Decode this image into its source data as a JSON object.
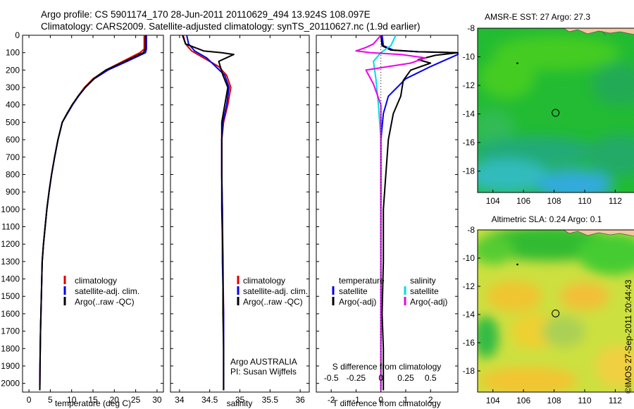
{
  "header": {
    "line1": "Argo profile: CS 5901174_170 28-Jun-2011 20110629_494 13.924S 108.097E",
    "line2": "Climatology: CARS2009. Satellite-adjusted climatology: synTS_20110627.nc (1.9d earlier)"
  },
  "side_label": "©IMOS 27-Sep-2011 20:44:43",
  "colors": {
    "red": "#dd0000",
    "blue": "#0000ee",
    "black": "#000000",
    "cyan": "#00dddd",
    "magenta": "#ee00ee",
    "land": "#f2c8a0"
  },
  "chart_data": [
    {
      "id": "temperature",
      "type": "line",
      "xlabel": "temperature (deg C)",
      "xlim": [
        -1.5,
        31.5
      ],
      "xticks": [
        0,
        5,
        10,
        15,
        20,
        25,
        30
      ],
      "ylim": [
        0,
        2050
      ],
      "yticks": [
        0,
        100,
        200,
        300,
        400,
        500,
        600,
        700,
        800,
        900,
        1000,
        1100,
        1200,
        1300,
        1400,
        1500,
        1600,
        1700,
        1800,
        1900,
        2000
      ],
      "legend": [
        "climatology",
        "satellite-adj. clim.",
        "Argo(..raw -QC)"
      ],
      "series": [
        {
          "name": "climatology",
          "color": "red",
          "x": [
            27,
            27,
            26,
            22,
            18,
            15,
            13,
            11.5,
            10.2,
            9,
            7.8,
            6.8,
            6,
            5.3,
            4.7,
            4.2,
            3.8,
            3.4,
            3.1,
            2.9,
            2.7,
            2.6,
            2.55
          ],
          "y": [
            0,
            80,
            100,
            150,
            200,
            250,
            300,
            350,
            400,
            450,
            500,
            600,
            700,
            800,
            900,
            1000,
            1100,
            1200,
            1300,
            1500,
            1700,
            1900,
            2040
          ]
        },
        {
          "name": "satellite-adj. clim.",
          "color": "blue",
          "x": [
            27.5,
            27.5,
            27.3,
            23,
            18.5,
            15.3,
            13.2,
            11.6,
            10.2,
            9,
            7.8,
            6.8,
            6,
            5.3,
            4.7,
            4.2,
            3.8,
            3.4,
            3.1,
            2.9,
            2.7,
            2.6,
            2.55
          ],
          "y": [
            0,
            80,
            100,
            150,
            200,
            250,
            300,
            350,
            400,
            450,
            500,
            600,
            700,
            800,
            900,
            1000,
            1100,
            1200,
            1300,
            1500,
            1700,
            1900,
            2040
          ]
        },
        {
          "name": "Argo(..raw -QC)",
          "color": "black",
          "x": [
            27.3,
            27.3,
            26.8,
            22.5,
            18,
            15.2,
            13.2,
            11.5,
            10.1,
            8.9,
            7.8,
            6.8,
            6,
            5.3,
            4.7,
            4.2,
            3.8,
            3.4,
            3.1,
            2.9,
            2.7,
            2.6,
            2.55
          ],
          "y": [
            0,
            80,
            100,
            150,
            200,
            250,
            300,
            350,
            400,
            450,
            500,
            600,
            700,
            800,
            900,
            1000,
            1100,
            1200,
            1300,
            1500,
            1700,
            1900,
            2040
          ]
        }
      ]
    },
    {
      "id": "salinity",
      "type": "line",
      "xlabel": "salinity",
      "xlim": [
        33.85,
        36.15
      ],
      "xticks": [
        34,
        34.5,
        35,
        35.5,
        36
      ],
      "xticklabels": [
        "34",
        "34.5",
        "35",
        "35.5",
        "36"
      ],
      "ylim": [
        0,
        2050
      ],
      "legend": [
        "climatology",
        "satellite-adj. clim.",
        "Argo(..raw -QC)"
      ],
      "annotation": [
        "Argo AUSTRALIA",
        "PI: Susan Wijffels"
      ],
      "series": [
        {
          "name": "climatology",
          "color": "red",
          "x": [
            34.06,
            34.1,
            34.2,
            34.4,
            34.65,
            34.78,
            34.85,
            34.8,
            34.73,
            34.7,
            34.7,
            34.71,
            34.72,
            34.73,
            34.73,
            34.73
          ],
          "y": [
            0,
            50,
            90,
            130,
            180,
            230,
            300,
            400,
            500,
            600,
            800,
            1000,
            1300,
            1600,
            1800,
            2040
          ]
        },
        {
          "name": "satellite-adj. clim.",
          "color": "blue",
          "x": [
            34.12,
            34.15,
            34.25,
            34.45,
            34.6,
            34.75,
            34.82,
            34.78,
            34.72,
            34.7,
            34.7,
            34.71,
            34.71,
            34.73,
            34.73,
            34.73
          ],
          "y": [
            0,
            50,
            90,
            130,
            180,
            230,
            300,
            400,
            500,
            600,
            800,
            1000,
            1300,
            1600,
            1800,
            2040
          ]
        },
        {
          "name": "Argo(..raw -QC)",
          "color": "black",
          "x": [
            34.05,
            34.1,
            34.4,
            34.7,
            34.9,
            34.65,
            34.72,
            34.8,
            34.75,
            34.7,
            34.7,
            34.7,
            34.72,
            34.72,
            34.73,
            34.73
          ],
          "y": [
            0,
            50,
            90,
            100,
            110,
            150,
            230,
            300,
            400,
            500,
            800,
            1000,
            1300,
            1600,
            1800,
            2040
          ]
        }
      ]
    },
    {
      "id": "difference",
      "type": "line",
      "xlabel": "T difference from climatology",
      "xlabel2": "S difference from climatology",
      "xlim": [
        -2.6,
        3.1
      ],
      "xticks": [
        -2,
        -1,
        0,
        1,
        2
      ],
      "xticks2": [
        -0.5,
        -0.25,
        0,
        0.25,
        0.5
      ],
      "xticklabels2": [
        "-0.5",
        "-0.25",
        "0",
        "0.25",
        "0.5"
      ],
      "ylim": [
        0,
        2050
      ],
      "legend_temperature": [
        "temperature",
        "satellite",
        "Argo(-adj)"
      ],
      "legend_salinity": [
        "salinity",
        "satellite",
        "Argo(-adj)"
      ],
      "series": [
        {
          "name": "T satellite",
          "color": "blue",
          "x": [
            0.05,
            0.1,
            0.5,
            1.5,
            3.1,
            3.1,
            2,
            1,
            0.3,
            0.1,
            0,
            0,
            0,
            0,
            0
          ],
          "y": [
            0,
            60,
            85,
            95,
            100,
            110,
            180,
            250,
            350,
            450,
            600,
            1000,
            1400,
            1800,
            2040
          ]
        },
        {
          "name": "T Argo(-adj)",
          "color": "black",
          "x": [
            0,
            0.05,
            0.4,
            1.5,
            3.1,
            2.2,
            1.5,
            2,
            1.2,
            0.9,
            0.8,
            0.5,
            0.3,
            0.2,
            0.1,
            0.1,
            0.05,
            0.1,
            0.1
          ],
          "y": [
            0,
            60,
            85,
            95,
            100,
            115,
            140,
            160,
            200,
            260,
            350,
            450,
            600,
            800,
            1000,
            1300,
            1600,
            1800,
            2040
          ]
        },
        {
          "name": "S satellite",
          "color": "cyan",
          "x": [
            0.6,
            0.4,
            0.2,
            0,
            -0.3,
            -0.2,
            -0.1,
            0,
            0,
            0,
            0,
            0
          ],
          "y": [
            0,
            60,
            80,
            100,
            150,
            250,
            400,
            600,
            900,
            1300,
            1700,
            2040
          ]
        },
        {
          "name": "S Argo(-adj)",
          "color": "magenta",
          "x": [
            0,
            -0.3,
            -0.6,
            -1,
            -0.4,
            0.8,
            1.8,
            1.2,
            0.3,
            -0.6,
            -0.3,
            0,
            0,
            0,
            0
          ],
          "y": [
            0,
            50,
            70,
            90,
            100,
            110,
            130,
            160,
            180,
            200,
            280,
            400,
            800,
            1500,
            2040
          ]
        }
      ]
    },
    {
      "id": "sst_map",
      "type": "heatmap",
      "title": "AMSR-E SST: 27 Argo: 27.3",
      "xlim": [
        103,
        113.5
      ],
      "ylim": [
        -19.5,
        -8
      ],
      "xticks": [
        104,
        106,
        108,
        110,
        112
      ],
      "yticks": [
        -8,
        -10,
        -12,
        -14,
        -16,
        -18
      ],
      "marker": {
        "lon": 108.097,
        "lat": -13.924
      },
      "dot": {
        "lon": 105.6,
        "lat": -10.45
      }
    },
    {
      "id": "sla_map",
      "type": "heatmap",
      "title": "Altimetric SLA: 0.24 Argo: 0.1",
      "xlim": [
        103,
        113.5
      ],
      "ylim": [
        -19.5,
        -8
      ],
      "xticks": [
        104,
        106,
        108,
        110,
        112
      ],
      "yticks": [
        -8,
        -10,
        -12,
        -14,
        -16,
        -18
      ],
      "marker": {
        "lon": 108.097,
        "lat": -13.924
      },
      "dot": {
        "lon": 105.6,
        "lat": -10.45
      }
    }
  ]
}
